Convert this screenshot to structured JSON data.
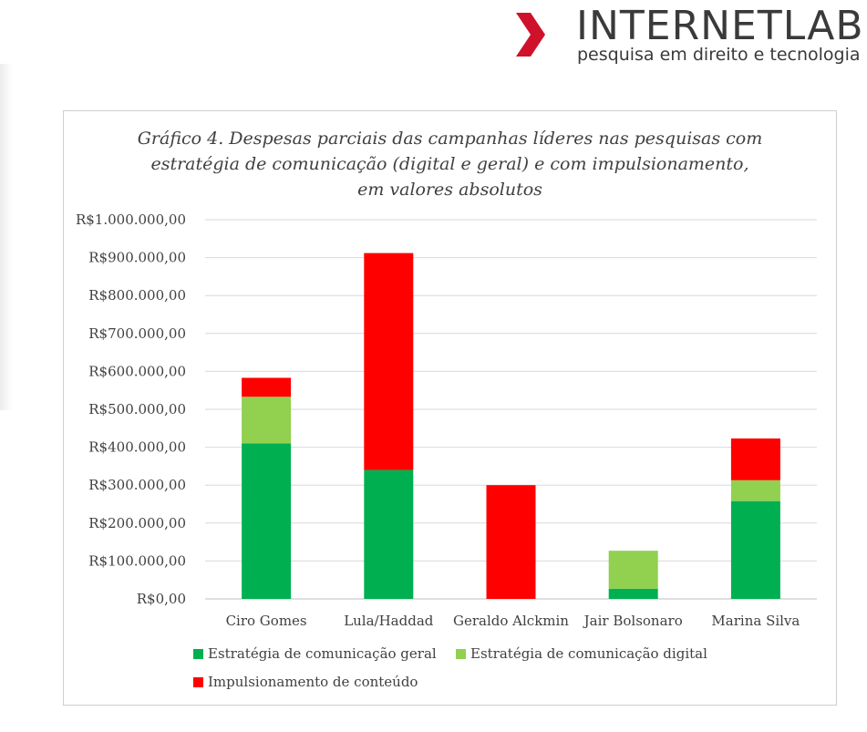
{
  "logo": {
    "name": "INTERNETLAB",
    "tagline": "pesquisa em direito e tecnologia",
    "chevron_color": "#d0112b"
  },
  "chart_data": {
    "type": "bar",
    "stacked": true,
    "title_lines": [
      "Gráfico 4. Despesas parciais das campanhas líderes nas pesquisas com",
      "estratégia de comunicação (digital e geral) e com impulsionamento,",
      "em valores absolutos"
    ],
    "categories": [
      "Ciro Gomes",
      "Lula/Haddad",
      "Geraldo Alckmin",
      "Jair Bolsonaro",
      "Marina Silva"
    ],
    "series": [
      {
        "name": "Estratégia de comunicação geral",
        "color": "#00b050",
        "values": [
          410000,
          340000,
          0,
          27000,
          258000
        ]
      },
      {
        "name": "Estratégia de comunicação digital",
        "color": "#92d050",
        "values": [
          123000,
          0,
          0,
          100000,
          55000
        ]
      },
      {
        "name": "Impulsionamento de conteúdo",
        "color": "#ff0000",
        "values": [
          50000,
          572000,
          300000,
          0,
          110000
        ]
      }
    ],
    "ylim": [
      0,
      1000000
    ],
    "yticks": [
      0,
      100000,
      200000,
      300000,
      400000,
      500000,
      600000,
      700000,
      800000,
      900000,
      1000000
    ],
    "ytick_labels": [
      "R$0,00",
      "R$100.000,00",
      "R$200.000,00",
      "R$300.000,00",
      "R$400.000,00",
      "R$500.000,00",
      "R$600.000,00",
      "R$700.000,00",
      "R$800.000,00",
      "R$900.000,00",
      "R$1.000.000,00"
    ],
    "grid": true,
    "legend_position": "bottom"
  }
}
